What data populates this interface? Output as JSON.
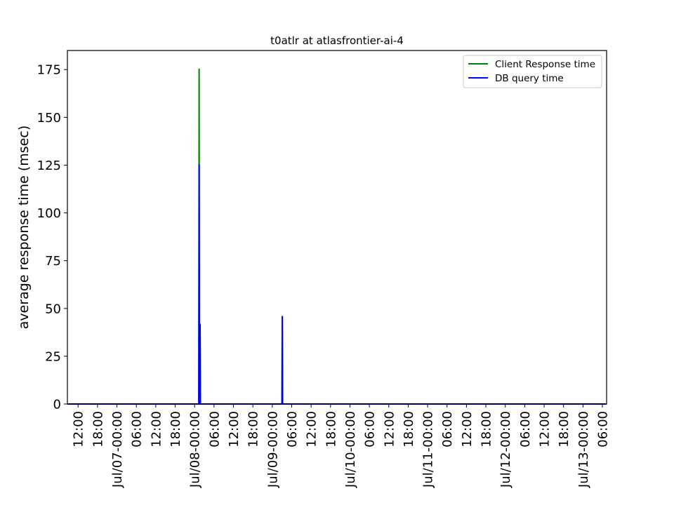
{
  "chart_data": {
    "type": "line",
    "title": "t0atlr at atlasfrontier-ai-4",
    "xlabel": "",
    "ylabel": "average response time (msec)",
    "x_ticks": [
      {
        "t": 12,
        "label": "12:00"
      },
      {
        "t": 18,
        "label": "18:00"
      },
      {
        "t": 24,
        "label": "Jul/07-00:00"
      },
      {
        "t": 30,
        "label": "06:00"
      },
      {
        "t": 36,
        "label": "12:00"
      },
      {
        "t": 42,
        "label": "18:00"
      },
      {
        "t": 48,
        "label": "Jul/08-00:00"
      },
      {
        "t": 54,
        "label": "06:00"
      },
      {
        "t": 60,
        "label": "12:00"
      },
      {
        "t": 66,
        "label": "18:00"
      },
      {
        "t": 72,
        "label": "Jul/09-00:00"
      },
      {
        "t": 78,
        "label": "06:00"
      },
      {
        "t": 84,
        "label": "12:00"
      },
      {
        "t": 90,
        "label": "18:00"
      },
      {
        "t": 96,
        "label": "Jul/10-00:00"
      },
      {
        "t": 102,
        "label": "06:00"
      },
      {
        "t": 108,
        "label": "12:00"
      },
      {
        "t": 114,
        "label": "18:00"
      },
      {
        "t": 120,
        "label": "Jul/11-00:00"
      },
      {
        "t": 126,
        "label": "06:00"
      },
      {
        "t": 132,
        "label": "12:00"
      },
      {
        "t": 138,
        "label": "18:00"
      },
      {
        "t": 144,
        "label": "Jul/12-00:00"
      },
      {
        "t": 150,
        "label": "06:00"
      },
      {
        "t": 156,
        "label": "12:00"
      },
      {
        "t": 162,
        "label": "18:00"
      },
      {
        "t": 168,
        "label": "Jul/13-00:00"
      },
      {
        "t": 174,
        "label": "06:00"
      }
    ],
    "xlim": [
      8.7,
      175.3
    ],
    "y_ticks": [
      0,
      25,
      50,
      75,
      100,
      125,
      150,
      175
    ],
    "ylim": [
      0,
      185
    ],
    "legend_position": "top-right",
    "series": [
      {
        "name": "Client Response time",
        "color": "#008000",
        "points": [
          [
            8.7,
            0
          ],
          [
            49.3,
            0
          ],
          [
            49.4,
            175.5
          ],
          [
            49.5,
            0
          ],
          [
            49.6,
            0
          ],
          [
            49.7,
            42
          ],
          [
            49.8,
            0
          ],
          [
            75.0,
            0
          ],
          [
            75.1,
            46
          ],
          [
            75.2,
            0
          ],
          [
            175.3,
            0
          ]
        ]
      },
      {
        "name": "DB query time",
        "color": "#0000ff",
        "points": [
          [
            8.7,
            0
          ],
          [
            49.3,
            0
          ],
          [
            49.4,
            125.5
          ],
          [
            49.5,
            0
          ],
          [
            49.6,
            0
          ],
          [
            49.7,
            42
          ],
          [
            49.8,
            0
          ],
          [
            75.0,
            0
          ],
          [
            75.1,
            46
          ],
          [
            75.2,
            0
          ],
          [
            175.3,
            0
          ]
        ]
      }
    ]
  }
}
